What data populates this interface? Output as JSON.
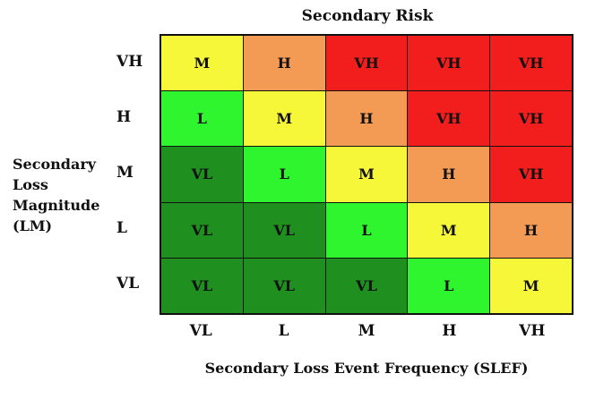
{
  "title": "Secondary Risk",
  "y_axis": {
    "label_lines": [
      "Secondary",
      "Loss",
      "Magnitude",
      "(LM)"
    ],
    "row_labels": [
      "VH",
      "H",
      "M",
      "L",
      "VL"
    ]
  },
  "x_axis": {
    "label": "Secondary Loss Event Frequency (SLEF)",
    "col_labels": [
      "VL",
      "L",
      "M",
      "H",
      "VH"
    ]
  },
  "matrix": {
    "rows": [
      [
        "M",
        "H",
        "VH",
        "VH",
        "VH"
      ],
      [
        "L",
        "M",
        "H",
        "VH",
        "VH"
      ],
      [
        "VL",
        "L",
        "M",
        "H",
        "VH"
      ],
      [
        "VL",
        "VL",
        "L",
        "M",
        "H"
      ],
      [
        "VL",
        "VL",
        "VL",
        "L",
        "M"
      ]
    ]
  },
  "colors": {
    "VL": "#1f8f1f",
    "L": "#2ff52f",
    "M": "#f7f73a",
    "H": "#f39a55",
    "VH": "#f21d1d"
  }
}
